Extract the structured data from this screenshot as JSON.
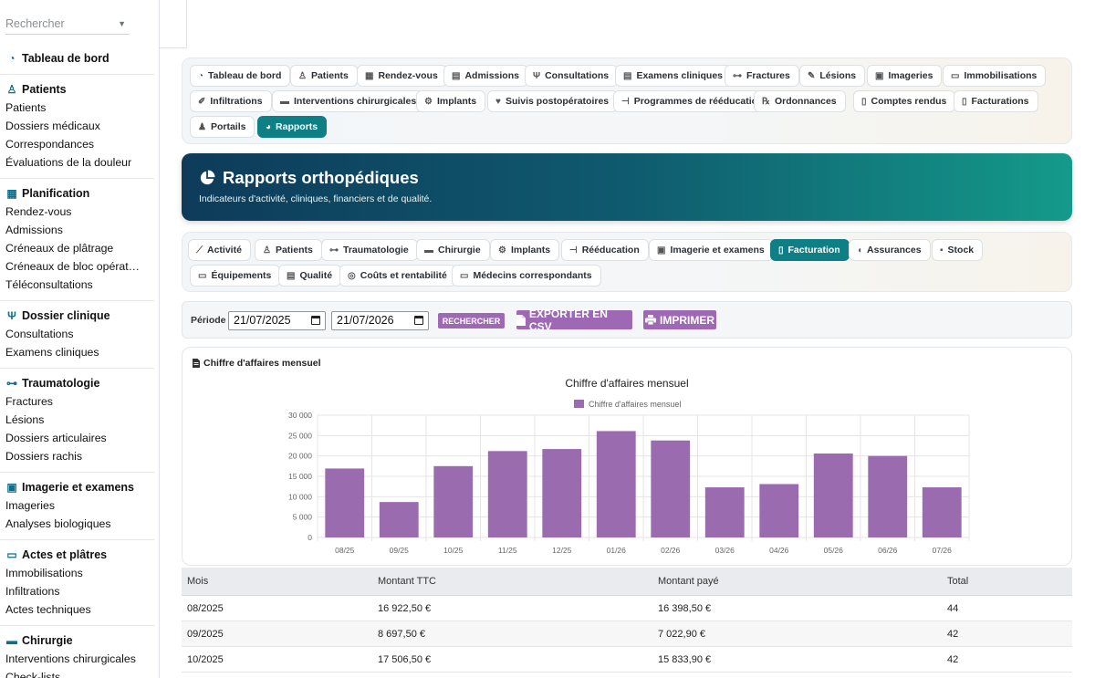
{
  "sidebar": {
    "search_placeholder": "Rechercher",
    "sections": [
      {
        "title": "Tableau de bord",
        "icon": "gauge-icon",
        "items": []
      },
      {
        "title": "Patients",
        "icon": "user-icon",
        "items": [
          "Patients",
          "Dossiers médicaux",
          "Correspondances",
          "Évaluations de la douleur"
        ]
      },
      {
        "title": "Planification",
        "icon": "calendar-icon",
        "items": [
          "Rendez-vous",
          "Admissions",
          "Créneaux de plâtrage",
          "Créneaux de bloc opérat…",
          "Téléconsultations"
        ]
      },
      {
        "title": "Dossier clinique",
        "icon": "stethoscope-icon",
        "items": [
          "Consultations",
          "Examens cliniques"
        ]
      },
      {
        "title": "Traumatologie",
        "icon": "bone-icon",
        "items": [
          "Fractures",
          "Lésions",
          "Dossiers articulaires",
          "Dossiers rachis"
        ]
      },
      {
        "title": "Imagerie et examens",
        "icon": "xray-icon",
        "items": [
          "Imageries",
          "Analyses biologiques"
        ]
      },
      {
        "title": "Actes et plâtres",
        "icon": "bandage-icon",
        "items": [
          "Immobilisations",
          "Infiltrations",
          "Actes techniques"
        ]
      },
      {
        "title": "Chirurgie",
        "icon": "bed-icon",
        "items": [
          "Interventions chirurgicales",
          "Check-lists"
        ]
      }
    ]
  },
  "topnav": [
    {
      "label": "Tableau de bord",
      "icon": "gauge-icon"
    },
    {
      "label": "Patients",
      "icon": "user-icon"
    },
    {
      "label": "Rendez-vous",
      "icon": "calendar-icon"
    },
    {
      "label": "Admissions",
      "icon": "clipboard-icon"
    },
    {
      "label": "Consultations",
      "icon": "stethoscope-icon"
    },
    {
      "label": "Examens cliniques",
      "icon": "clipboard-list-icon"
    },
    {
      "label": "Fractures",
      "icon": "bone-icon"
    },
    {
      "label": "Lésions",
      "icon": "brush-icon"
    },
    {
      "label": "Imageries",
      "icon": "xray-icon"
    },
    {
      "label": "Immobilisations",
      "icon": "bandage-icon"
    },
    {
      "label": "Infiltrations",
      "icon": "syringe-icon"
    },
    {
      "label": "Interventions chirurgicales",
      "icon": "bed-icon"
    },
    {
      "label": "Implants",
      "icon": "gears-icon"
    },
    {
      "label": "Suivis postopératoires",
      "icon": "heart-icon"
    },
    {
      "label": "Programmes de rééducation",
      "icon": "dumbbell-icon"
    },
    {
      "label": "Ordonnances",
      "icon": "prescription-icon"
    },
    {
      "label": "Comptes rendus",
      "icon": "file-icon"
    },
    {
      "label": "Facturations",
      "icon": "invoice-icon"
    },
    {
      "label": "Portails",
      "icon": "users-icon"
    },
    {
      "label": "Rapports",
      "icon": "chart-pie-icon",
      "active": true
    }
  ],
  "hero": {
    "title": "Rapports orthopédiques",
    "subtitle": "Indicateurs d'activité, cliniques, financiers et de qualité."
  },
  "subnav": [
    {
      "label": "Activité",
      "icon": "chart-line-icon"
    },
    {
      "label": "Patients",
      "icon": "user-icon"
    },
    {
      "label": "Traumatologie",
      "icon": "bone-icon"
    },
    {
      "label": "Chirurgie",
      "icon": "bed-icon"
    },
    {
      "label": "Implants",
      "icon": "gears-icon"
    },
    {
      "label": "Rééducation",
      "icon": "dumbbell-icon"
    },
    {
      "label": "Imagerie et examens",
      "icon": "xray-icon"
    },
    {
      "label": "Facturation",
      "icon": "invoice-icon",
      "active": true
    },
    {
      "label": "Assurances",
      "icon": "shield-icon"
    },
    {
      "label": "Stock",
      "icon": "boxes-icon"
    },
    {
      "label": "Équipements",
      "icon": "monitor-icon"
    },
    {
      "label": "Qualité",
      "icon": "clipboard-check-icon"
    },
    {
      "label": "Coûts et rentabilité",
      "icon": "coins-icon"
    },
    {
      "label": "Médecins correspondants",
      "icon": "id-card-icon"
    }
  ],
  "filter": {
    "period_label": "Période",
    "date_from": "21/07/2025",
    "date_to": "21/07/2026",
    "search_label": "RECHERCHER",
    "export_label": "EXPORTER EN CSV",
    "print_label": "IMPRIMER"
  },
  "card": {
    "title": "Chiffre d'affaires mensuel"
  },
  "chart_data": {
    "type": "bar",
    "title": "Chiffre d'affaires mensuel",
    "legend": "top",
    "color": "#9b6bb0",
    "categories": [
      "08/25",
      "09/25",
      "10/25",
      "11/25",
      "12/25",
      "01/26",
      "02/26",
      "03/26",
      "04/26",
      "05/26",
      "06/26",
      "07/26"
    ],
    "series": [
      {
        "name": "Chiffre d'affaires mensuel",
        "values": [
          16922.5,
          8697.5,
          17506.5,
          21200,
          21700,
          26100,
          23800,
          12300,
          13100,
          20600,
          20000,
          12300
        ]
      }
    ],
    "ylim": [
      0,
      30000
    ],
    "yticks": [
      "0",
      "5 000",
      "10 000",
      "15 000",
      "20 000",
      "25 000",
      "30 000"
    ],
    "grid": true
  },
  "table": {
    "headers": [
      "Mois",
      "Montant TTC",
      "Montant payé",
      "Total"
    ],
    "rows": [
      [
        "08/2025",
        "16 922,50 €",
        "16 398,50 €",
        "44"
      ],
      [
        "09/2025",
        "8 697,50 €",
        "7 022,90 €",
        "42"
      ],
      [
        "10/2025",
        "17 506,50 €",
        "15 833,90 €",
        "42"
      ]
    ]
  }
}
